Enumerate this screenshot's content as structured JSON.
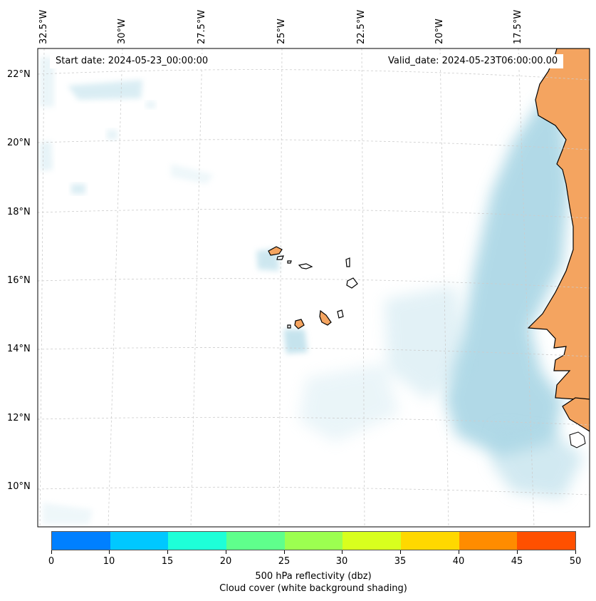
{
  "map": {
    "start_date": "Start date: 2024-05-23_00:00:00",
    "valid_date": "Valid_date: 2024-05-23T06:00:00.00",
    "lon_labels": [
      "32.5°W",
      "30°W",
      "27.5°W",
      "25°W",
      "22.5°W",
      "20°W",
      "17.5°W"
    ],
    "lat_labels": [
      "22°N",
      "20°N",
      "18°N",
      "16°N",
      "14°N",
      "12°N",
      "10°N"
    ],
    "gridlines": true,
    "land_color": "#f4a460",
    "cloud_color": "#add8e6",
    "coastline_color": "#000000"
  },
  "colorbar": {
    "ticks": [
      "0",
      "10",
      "15",
      "20",
      "25",
      "30",
      "35",
      "40",
      "45",
      "50"
    ],
    "colors": [
      "#0080ff",
      "#00c8ff",
      "#1effd8",
      "#5fff8c",
      "#9cff50",
      "#d8ff1e",
      "#ffd800",
      "#ff8c00",
      "#ff5000"
    ],
    "label": "500 hPa reflectivity (dbz)",
    "sublabel": "Cloud cover (white background shading)"
  }
}
